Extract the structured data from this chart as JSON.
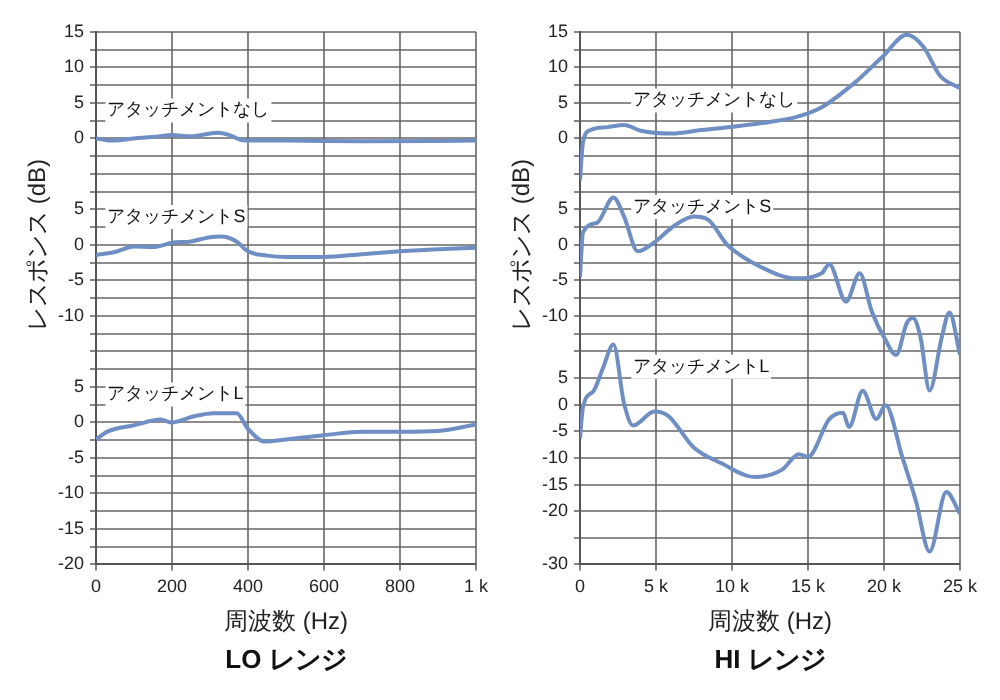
{
  "chart_data": [
    {
      "type": "line",
      "title": "LO レンジ",
      "xlabel": "周波数 (Hz)",
      "y2label": "レスポンス (dB)",
      "grid": true,
      "marker": "none",
      "line_style": "solid",
      "xlim": [
        0,
        1000
      ],
      "xticks": [
        0,
        200,
        400,
        600,
        800,
        {
          "value": 1000,
          "label": "1 k"
        }
      ],
      "ylim": [
        -20,
        55
      ],
      "yticks": [
        -20,
        {
          "value": -17.5,
          "label": null
        },
        -15,
        {
          "value": -12.5,
          "label": null
        },
        -10,
        {
          "value": -7.5,
          "label": null
        },
        -5,
        {
          "value": -2.5,
          "label": null
        },
        0,
        {
          "value": 2.5,
          "label": null
        },
        5,
        {
          "value": 7.5,
          "label": null
        },
        {
          "value": 10,
          "label": null
        }
      ],
      "y2lim": [
        -45,
        30
      ],
      "y2ticks": [
        {
          "value": -12.5,
          "label": null
        },
        -10,
        {
          "value": -7.5,
          "label": null
        },
        -5,
        {
          "value": -2.5,
          "label": null
        },
        0,
        {
          "value": 2.5,
          "label": null
        },
        5,
        {
          "value": 7.5,
          "label": null
        }
      ],
      "y3lim": [
        -60,
        15
      ],
      "y3ticks": [
        {
          "value": -5,
          "label": null
        },
        {
          "value": -2.5,
          "label": null
        },
        0,
        {
          "value": 2.5,
          "label": null
        },
        5,
        {
          "value": 7.5,
          "label": null
        },
        10,
        {
          "value": 12.5,
          "label": null
        },
        15
      ],
      "series": [
        {
          "name": "アタッチメントなし",
          "color": "#6f8fc4",
          "axis": "y3",
          "x": [
            0,
            40,
            100,
            150,
            200,
            250,
            320,
            350,
            390,
            500,
            700,
            1000
          ],
          "values": [
            0,
            -0.3,
            0,
            0.2,
            0.5,
            0.3,
            0.8,
            0.5,
            -0.3,
            -0.3,
            -0.4,
            -0.3
          ]
        },
        {
          "name": "アタッチメントS",
          "color": "#6f8fc4",
          "axis": "y2",
          "x": [
            0,
            50,
            100,
            150,
            200,
            250,
            300,
            330,
            370,
            400,
            450,
            500,
            600,
            700,
            800,
            900,
            1000
          ],
          "values": [
            -1.4,
            -1,
            -0.2,
            -0.3,
            0.3,
            0.5,
            1.1,
            1.2,
            0.5,
            -0.9,
            -1.5,
            -1.7,
            -1.7,
            -1.3,
            -0.9,
            -0.6,
            -0.4
          ]
        },
        {
          "name": "アタッチメントL",
          "color": "#6f8fc4",
          "axis": "y",
          "x": [
            0,
            30,
            100,
            170,
            200,
            260,
            310,
            370,
            400,
            445,
            500,
            600,
            700,
            800,
            900,
            1000
          ],
          "values": [
            -2.4,
            -1.3,
            -0.4,
            0.4,
            0,
            0.9,
            1.3,
            1.3,
            -0.9,
            -2.7,
            -2.4,
            -1.8,
            -1.3,
            -1.3,
            -1.2,
            -0.3
          ]
        }
      ]
    },
    {
      "type": "line",
      "title": "HI レンジ",
      "xlabel": "周波数 (Hz)",
      "y2label": "レスポンス (dB)",
      "grid": true,
      "marker": "none",
      "line_style": "solid",
      "xlim": [
        0,
        25000
      ],
      "xticks": [
        0,
        {
          "value": 5000,
          "label": "5 k"
        },
        {
          "value": 10000,
          "label": "10 k"
        },
        {
          "value": 15000,
          "label": "15 k"
        },
        {
          "value": 20000,
          "label": "20 k"
        },
        {
          "value": 25000,
          "label": "25 k"
        }
      ],
      "ylim": [
        -30,
        70
      ],
      "yticks": [
        -30,
        {
          "value": -25,
          "label": null
        },
        -20,
        -15,
        -10,
        -5,
        0,
        5,
        {
          "value": 10,
          "label": null
        }
      ],
      "y2lim": [
        -45,
        30
      ],
      "y2ticks": [
        {
          "value": -12.5,
          "label": null
        },
        -10,
        {
          "value": -7.5,
          "label": null
        },
        -5,
        {
          "value": -2.5,
          "label": null
        },
        0,
        {
          "value": 2.5,
          "label": null
        },
        5,
        {
          "value": 7.5,
          "label": null
        }
      ],
      "y3lim": [
        -60,
        15
      ],
      "y3ticks": [
        {
          "value": -5,
          "label": null
        },
        {
          "value": -2.5,
          "label": null
        },
        0,
        {
          "value": 2.5,
          "label": null
        },
        5,
        {
          "value": 7.5,
          "label": null
        },
        10,
        {
          "value": 12.5,
          "label": null
        },
        15
      ],
      "series": [
        {
          "name": "アタッチメントなし",
          "color": "#6f8fc4",
          "axis": "y3",
          "x": [
            0,
            200,
            700,
            1800,
            2900,
            4000,
            6000,
            8000,
            10200,
            12400,
            14200,
            15900,
            18100,
            19900,
            21500,
            22600,
            23700,
            25000
          ],
          "values": [
            -5.9,
            -0.5,
            1.2,
            1.6,
            1.9,
            1.1,
            0.7,
            1.2,
            1.7,
            2.3,
            3,
            4.4,
            7.9,
            11.5,
            14.6,
            12.9,
            8.8,
            7.1
          ]
        },
        {
          "name": "アタッチメントS",
          "color": "#6f8fc4",
          "axis": "y2",
          "x": [
            0,
            200,
            1100,
            2200,
            2900,
            3800,
            4900,
            6200,
            7500,
            8400,
            9700,
            11900,
            14200,
            15900,
            16400,
            17500,
            18400,
            19200,
            20100,
            20800,
            21500,
            21900,
            22400,
            23000,
            23800,
            24300,
            25000
          ],
          "values": [
            -4.5,
            1.8,
            3.1,
            6.7,
            4,
            -0.9,
            0.4,
            2.7,
            4,
            3.6,
            0,
            -3.1,
            -4.7,
            -4,
            -2.7,
            -8,
            -4,
            -9.4,
            -13.4,
            -15.5,
            -11,
            -10.3,
            -13,
            -20.5,
            -13,
            -9.5,
            -15.5
          ]
        },
        {
          "name": "アタッチメントL",
          "color": "#6f8fc4",
          "axis": "y",
          "x": [
            0,
            200,
            900,
            1500,
            2200,
            2900,
            3500,
            4900,
            5800,
            7500,
            9300,
            11500,
            13300,
            14400,
            15000,
            16400,
            17300,
            17700,
            18600,
            19500,
            20100,
            21200,
            22100,
            23000,
            24100,
            25000
          ],
          "values": [
            -6.3,
            -0.4,
            2.6,
            6.8,
            11.3,
            0.2,
            -3.9,
            -1.3,
            -2.1,
            -8.1,
            -11,
            -13.6,
            -12.2,
            -9.3,
            -9.8,
            -2.7,
            -1.5,
            -4.2,
            2.6,
            -2.7,
            -0.1,
            -9.8,
            -18.1,
            -27.6,
            -16.4,
            -20.5
          ]
        }
      ]
    }
  ]
}
